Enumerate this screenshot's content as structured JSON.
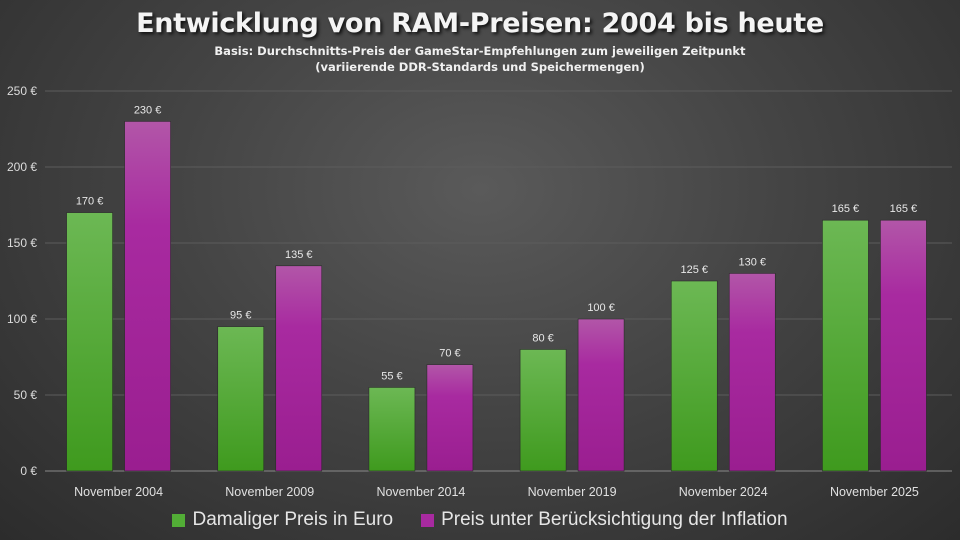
{
  "chart_data": {
    "type": "bar",
    "title": "Entwicklung von RAM-Preisen: 2004 bis heute",
    "subtitle": [
      "Basis: Durchschnitts-Preis der GameStar-Empfehlungen zum jeweiligen Zeitpunkt",
      "(variierende DDR-Standards und Speichermengen)"
    ],
    "categories": [
      "November 2004",
      "November 2009",
      "November 2014",
      "November 2019",
      "November 2024",
      "November 2025"
    ],
    "series": [
      {
        "name": "Damaliger Preis in Euro",
        "values": [
          170,
          95,
          55,
          80,
          125,
          165
        ],
        "color": "#52ad36"
      },
      {
        "name": "Preis unter Berücksichtigung der Inflation",
        "values": [
          230,
          135,
          70,
          100,
          130,
          165
        ],
        "color": "#a82aa0"
      }
    ],
    "ylim": [
      0,
      250
    ],
    "yticks": [
      0,
      50,
      100,
      150,
      200,
      250
    ],
    "tick_suffix": " €",
    "grid": true,
    "legend": "bottom"
  }
}
